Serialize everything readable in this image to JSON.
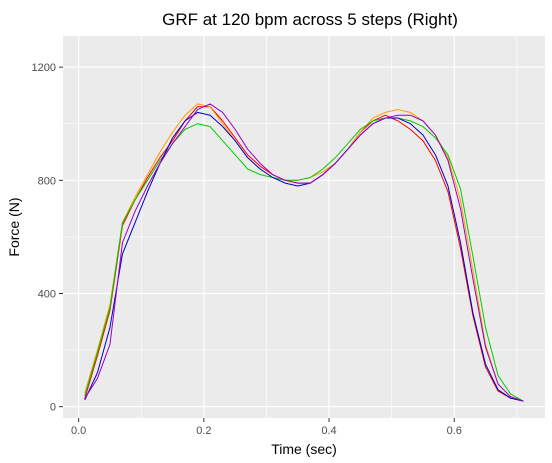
{
  "chart_data": {
    "type": "line",
    "title": "GRF at 120 bpm across 5 steps (Right)",
    "xlabel": "Time (sec)",
    "ylabel": "Force (N)",
    "xlim": [
      -0.025,
      0.745
    ],
    "ylim": [
      -40,
      1310
    ],
    "x_ticks": [
      0.0,
      0.2,
      0.4,
      0.6
    ],
    "x_tick_labels": [
      "0.0",
      "0.2",
      "0.4",
      "0.6"
    ],
    "y_ticks": [
      0,
      400,
      800,
      1200
    ],
    "y_tick_labels": [
      "0",
      "400",
      "800",
      "1200"
    ],
    "grid": true,
    "legend": "none",
    "panel_background": "#ebebeb",
    "grid_color": "#ffffff",
    "series": [
      {
        "color": "#ff0000",
        "x": [
          0.01,
          0.03,
          0.05,
          0.07,
          0.09,
          0.11,
          0.13,
          0.15,
          0.17,
          0.19,
          0.21,
          0.23,
          0.25,
          0.27,
          0.29,
          0.31,
          0.33,
          0.35,
          0.37,
          0.39,
          0.41,
          0.43,
          0.45,
          0.47,
          0.49,
          0.51,
          0.53,
          0.55,
          0.57,
          0.59,
          0.61,
          0.63,
          0.65,
          0.67,
          0.69,
          0.71
        ],
        "y": [
          30,
          180,
          340,
          640,
          730,
          810,
          880,
          940,
          1010,
          1060,
          1060,
          1010,
          950,
          890,
          850,
          820,
          800,
          790,
          790,
          820,
          860,
          910,
          970,
          1010,
          1030,
          1010,
          980,
          940,
          870,
          760,
          560,
          320,
          140,
          55,
          30,
          20
        ]
      },
      {
        "color": "#ff9900",
        "x": [
          0.01,
          0.03,
          0.05,
          0.07,
          0.09,
          0.11,
          0.13,
          0.15,
          0.17,
          0.19,
          0.21,
          0.23,
          0.25,
          0.27,
          0.29,
          0.31,
          0.33,
          0.35,
          0.37,
          0.39,
          0.41,
          0.43,
          0.45,
          0.47,
          0.49,
          0.51,
          0.53,
          0.55,
          0.57,
          0.59,
          0.61,
          0.63,
          0.65,
          0.67,
          0.69,
          0.71
        ],
        "y": [
          50,
          200,
          360,
          650,
          740,
          820,
          900,
          970,
          1030,
          1070,
          1060,
          1000,
          940,
          880,
          840,
          810,
          800,
          800,
          810,
          830,
          860,
          910,
          970,
          1020,
          1040,
          1050,
          1040,
          1010,
          960,
          880,
          730,
          480,
          220,
          80,
          35,
          20
        ]
      },
      {
        "color": "#00cc00",
        "x": [
          0.01,
          0.03,
          0.05,
          0.07,
          0.09,
          0.11,
          0.13,
          0.15,
          0.17,
          0.19,
          0.21,
          0.23,
          0.25,
          0.27,
          0.29,
          0.31,
          0.33,
          0.35,
          0.37,
          0.39,
          0.41,
          0.43,
          0.45,
          0.47,
          0.49,
          0.51,
          0.53,
          0.55,
          0.57,
          0.59,
          0.61,
          0.63,
          0.65,
          0.67,
          0.69,
          0.71
        ],
        "y": [
          40,
          190,
          350,
          650,
          730,
          800,
          870,
          930,
          980,
          1000,
          990,
          940,
          890,
          840,
          820,
          810,
          800,
          800,
          810,
          840,
          880,
          930,
          980,
          1010,
          1020,
          1020,
          1010,
          990,
          950,
          890,
          770,
          530,
          280,
          110,
          45,
          20
        ]
      },
      {
        "color": "#0000cc",
        "x": [
          0.01,
          0.03,
          0.05,
          0.07,
          0.09,
          0.11,
          0.13,
          0.15,
          0.17,
          0.19,
          0.21,
          0.23,
          0.25,
          0.27,
          0.29,
          0.31,
          0.33,
          0.35,
          0.37,
          0.39,
          0.41,
          0.43,
          0.45,
          0.47,
          0.49,
          0.51,
          0.53,
          0.55,
          0.57,
          0.59,
          0.61,
          0.63,
          0.65,
          0.67,
          0.69,
          0.71
        ],
        "y": [
          25,
          120,
          280,
          540,
          650,
          760,
          860,
          950,
          1010,
          1040,
          1030,
          990,
          940,
          880,
          840,
          810,
          790,
          780,
          790,
          820,
          860,
          910,
          960,
          1000,
          1020,
          1020,
          1000,
          960,
          890,
          780,
          580,
          330,
          150,
          60,
          30,
          20
        ]
      },
      {
        "color": "#9900cc",
        "x": [
          0.01,
          0.03,
          0.05,
          0.07,
          0.09,
          0.11,
          0.13,
          0.15,
          0.17,
          0.19,
          0.21,
          0.23,
          0.25,
          0.27,
          0.29,
          0.31,
          0.33,
          0.35,
          0.37,
          0.39,
          0.41,
          0.43,
          0.45,
          0.47,
          0.49,
          0.51,
          0.53,
          0.55,
          0.57,
          0.59,
          0.61,
          0.63,
          0.65,
          0.67,
          0.69,
          0.71
        ],
        "y": [
          30,
          100,
          220,
          580,
          690,
          780,
          860,
          930,
          990,
          1050,
          1070,
          1040,
          980,
          910,
          860,
          820,
          800,
          790,
          790,
          820,
          860,
          910,
          960,
          1000,
          1020,
          1030,
          1030,
          1010,
          960,
          870,
          700,
          450,
          210,
          80,
          35,
          20
        ]
      }
    ]
  }
}
